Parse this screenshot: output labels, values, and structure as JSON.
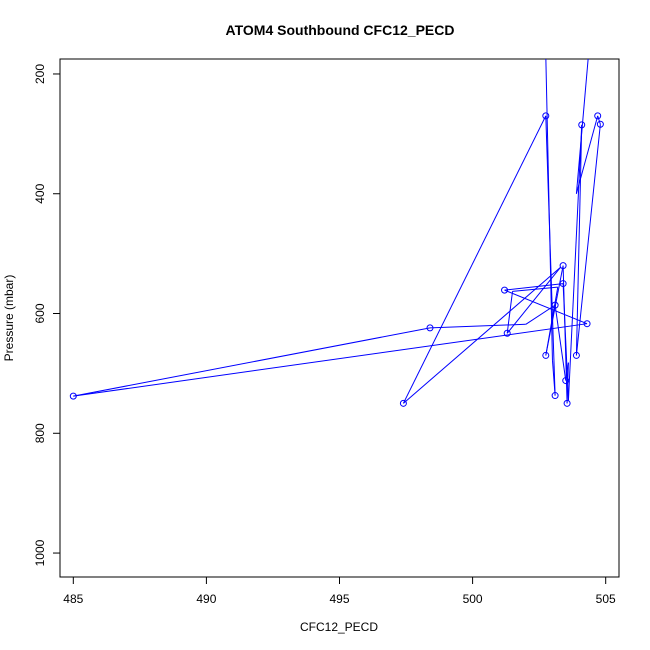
{
  "chart_data": {
    "type": "line",
    "title": "ATOM4 Southbound CFC12_PECD",
    "xlabel": "CFC12_PECD",
    "ylabel": "Pressure (mbar)",
    "xlim": [
      484.5,
      505.5
    ],
    "ylim": [
      1040,
      175
    ],
    "y_inverted": true,
    "x_ticks": [
      485,
      490,
      495,
      500,
      505
    ],
    "y_ticks": [
      200,
      400,
      600,
      800,
      1000
    ],
    "grid": false,
    "series": [
      {
        "color": "#0000ff",
        "marker": "open-circle",
        "points": [
          {
            "x": 502.75,
            "y": 170,
            "marker": false
          },
          {
            "x": 503.0,
            "y": 678,
            "marker": false
          },
          {
            "x": 503.1,
            "y": 737
          },
          {
            "x": 502.75,
            "y": 270
          },
          {
            "x": 497.4,
            "y": 750
          },
          {
            "x": 503.3,
            "y": 523,
            "marker": false
          },
          {
            "x": 501.3,
            "y": 633
          },
          {
            "x": 501.5,
            "y": 563,
            "marker": false
          },
          {
            "x": 503.2,
            "y": 556,
            "marker": false
          },
          {
            "x": 502.75,
            "y": 670
          },
          {
            "x": 503.4,
            "y": 520
          },
          {
            "x": 503.55,
            "y": 750
          },
          {
            "x": 503.6,
            "y": 682,
            "marker": false
          },
          {
            "x": 503.5,
            "y": 712
          },
          {
            "x": 503.1,
            "y": 586
          },
          {
            "x": 502.0,
            "y": 618,
            "marker": false
          },
          {
            "x": 498.4,
            "y": 624
          },
          {
            "x": 485.0,
            "y": 738
          },
          {
            "x": 504.3,
            "y": 617
          },
          {
            "x": 501.2,
            "y": 561
          },
          {
            "x": 503.4,
            "y": 550
          },
          {
            "x": 503.6,
            "y": 745,
            "marker": false
          },
          {
            "x": 504.1,
            "y": 285
          },
          {
            "x": 503.9,
            "y": 670
          },
          {
            "x": 504.8,
            "y": 284
          },
          {
            "x": 504.7,
            "y": 270
          },
          {
            "x": 503.9,
            "y": 400,
            "marker": false
          },
          {
            "x": 504.35,
            "y": 170,
            "marker": false
          }
        ]
      }
    ]
  }
}
